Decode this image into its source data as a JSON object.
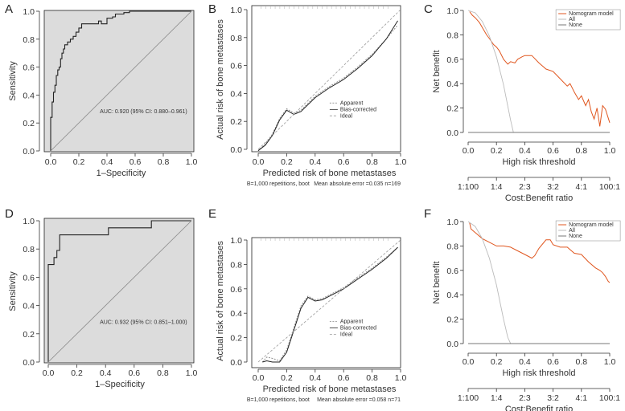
{
  "chart_data": [
    {
      "id": "A",
      "letter": "A",
      "type": "line",
      "kind": "roc",
      "xlabel": "1–Specificity",
      "ylabel": "Sensitivity",
      "xlim": [
        0,
        1
      ],
      "ylim": [
        0,
        1
      ],
      "xticks": [
        "0.0",
        "0.2",
        "0.4",
        "0.6",
        "0.8",
        "1.0"
      ],
      "yticks": [
        "0.0",
        "0.2",
        "0.4",
        "0.6",
        "0.8",
        "1.0"
      ],
      "annotation": "AUC: 0.920 (95% CI: 0.880–0.961)",
      "series": [
        {
          "name": "ROC",
          "x": [
            0,
            0,
            0.01,
            0.01,
            0.02,
            0.02,
            0.03,
            0.03,
            0.04,
            0.04,
            0.05,
            0.05,
            0.06,
            0.06,
            0.07,
            0.07,
            0.08,
            0.08,
            0.09,
            0.09,
            0.1,
            0.1,
            0.12,
            0.12,
            0.14,
            0.14,
            0.16,
            0.16,
            0.18,
            0.18,
            0.2,
            0.2,
            0.22,
            0.22,
            0.34,
            0.34,
            0.36,
            0.36,
            0.4,
            0.4,
            0.44,
            0.44,
            0.46,
            0.46,
            0.52,
            0.52,
            0.56,
            0.56,
            1
          ],
          "y": [
            0,
            0.24,
            0.24,
            0.35,
            0.35,
            0.42,
            0.42,
            0.47,
            0.47,
            0.54,
            0.54,
            0.58,
            0.58,
            0.6,
            0.6,
            0.66,
            0.66,
            0.7,
            0.7,
            0.73,
            0.73,
            0.76,
            0.76,
            0.78,
            0.78,
            0.8,
            0.8,
            0.82,
            0.82,
            0.85,
            0.85,
            0.88,
            0.88,
            0.91,
            0.91,
            0.93,
            0.93,
            0.91,
            0.91,
            0.95,
            0.95,
            0.96,
            0.96,
            0.98,
            0.98,
            0.99,
            0.99,
            1,
            1
          ]
        },
        {
          "name": "Reference",
          "x": [
            0,
            1
          ],
          "y": [
            0,
            1
          ]
        }
      ]
    },
    {
      "id": "B",
      "letter": "B",
      "type": "line",
      "kind": "calibration",
      "xlabel": "Predicted risk of bone metastases",
      "ylabel": "Actual risk of bone metastases",
      "xlim": [
        0,
        1
      ],
      "ylim": [
        0,
        1
      ],
      "xticks": [
        "0.0",
        "0.2",
        "0.4",
        "0.6",
        "0.8",
        "1.0"
      ],
      "yticks": [
        "0.0",
        "0.2",
        "0.4",
        "0.6",
        "0.8",
        "1.0"
      ],
      "footnote_left": "B=1,000 repetitions, boot",
      "footnote_right": "Mean absolute error =0.035 n=169",
      "legend": [
        "Apparent",
        "Bias-corrected",
        "Ideal"
      ],
      "series": [
        {
          "name": "Apparent",
          "x": [
            0,
            0.05,
            0.1,
            0.15,
            0.2,
            0.25,
            0.3,
            0.4,
            0.5,
            0.6,
            0.7,
            0.8,
            0.9,
            0.98
          ],
          "y": [
            -0.01,
            0.04,
            0.11,
            0.22,
            0.29,
            0.26,
            0.28,
            0.38,
            0.45,
            0.51,
            0.59,
            0.68,
            0.79,
            0.89
          ]
        },
        {
          "name": "Bias-corrected",
          "x": [
            0,
            0.05,
            0.1,
            0.15,
            0.2,
            0.25,
            0.3,
            0.4,
            0.5,
            0.6,
            0.7,
            0.8,
            0.9,
            0.98
          ],
          "y": [
            -0.01,
            0.03,
            0.1,
            0.21,
            0.28,
            0.25,
            0.27,
            0.37,
            0.44,
            0.5,
            0.58,
            0.67,
            0.79,
            0.92
          ]
        },
        {
          "name": "Ideal",
          "x": [
            0,
            1
          ],
          "y": [
            0,
            1
          ]
        }
      ]
    },
    {
      "id": "C",
      "letter": "C",
      "type": "line",
      "kind": "dca",
      "xlabel": "High risk threshold",
      "ylabel": "Net benefit",
      "x2label": "Cost:Benefit ratio",
      "xlim": [
        0,
        1
      ],
      "ylim": [
        0,
        1
      ],
      "xticks": [
        "0.0",
        "0.2",
        "0.4",
        "0.6",
        "0.8",
        "1.0"
      ],
      "yticks": [
        "0.0",
        "0.2",
        "0.4",
        "0.6",
        "0.8",
        "1.0"
      ],
      "ratio_ticks": [
        "1:100",
        "1:4",
        "2:3",
        "3:2",
        "4:1",
        "100:1"
      ],
      "legend": [
        "Nomogram model",
        "All",
        "None"
      ],
      "series": [
        {
          "name": "Nomogram model",
          "x": [
            0.01,
            0.03,
            0.05,
            0.08,
            0.1,
            0.13,
            0.15,
            0.18,
            0.2,
            0.22,
            0.25,
            0.28,
            0.3,
            0.33,
            0.35,
            0.38,
            0.4,
            0.45,
            0.5,
            0.55,
            0.6,
            0.65,
            0.7,
            0.72,
            0.75,
            0.78,
            0.8,
            0.83,
            0.85,
            0.87,
            0.89,
            0.91,
            0.93,
            0.95,
            0.97,
            1.0
          ],
          "y": [
            0.99,
            0.96,
            0.94,
            0.9,
            0.86,
            0.8,
            0.77,
            0.72,
            0.7,
            0.67,
            0.6,
            0.56,
            0.58,
            0.57,
            0.6,
            0.62,
            0.63,
            0.63,
            0.57,
            0.52,
            0.5,
            0.44,
            0.38,
            0.4,
            0.33,
            0.27,
            0.3,
            0.22,
            0.27,
            0.17,
            0.11,
            0.2,
            0.05,
            0.22,
            0.19,
            0.08
          ]
        },
        {
          "name": "All",
          "x": [
            0,
            0.05,
            0.1,
            0.15,
            0.2,
            0.25,
            0.3,
            0.32
          ],
          "y": [
            1.0,
            0.98,
            0.91,
            0.79,
            0.62,
            0.39,
            0.1,
            0.0
          ]
        },
        {
          "name": "None",
          "x": [
            0,
            1
          ],
          "y": [
            0,
            0
          ]
        }
      ]
    },
    {
      "id": "D",
      "letter": "D",
      "type": "line",
      "kind": "roc",
      "xlabel": "1–Specificity",
      "ylabel": "Sensitivity",
      "xlim": [
        0,
        1
      ],
      "ylim": [
        0,
        1
      ],
      "xticks": [
        "0.0",
        "0.2",
        "0.4",
        "0.6",
        "0.8",
        "1.0"
      ],
      "yticks": [
        "0.0",
        "0.2",
        "0.4",
        "0.6",
        "0.8",
        "1.0"
      ],
      "annotation": "AUC: 0.932 (95% CI: 0.851–1.000)",
      "series": [
        {
          "name": "ROC",
          "x": [
            0,
            0,
            0.04,
            0.04,
            0.06,
            0.06,
            0.08,
            0.08,
            0.42,
            0.42,
            0.72,
            0.72,
            1
          ],
          "y": [
            0,
            0.69,
            0.69,
            0.74,
            0.74,
            0.79,
            0.79,
            0.9,
            0.9,
            0.95,
            0.95,
            1,
            1
          ]
        },
        {
          "name": "Reference",
          "x": [
            0,
            1
          ],
          "y": [
            0,
            1
          ]
        }
      ]
    },
    {
      "id": "E",
      "letter": "E",
      "type": "line",
      "kind": "calibration",
      "xlabel": "Predicted risk of bone metastases",
      "ylabel": "Actual risk of bone metastases",
      "xlim": [
        0,
        1
      ],
      "ylim": [
        0,
        1
      ],
      "xticks": [
        "0.0",
        "0.2",
        "0.4",
        "0.6",
        "0.8",
        "1.0"
      ],
      "yticks": [
        "0.0",
        "0.2",
        "0.4",
        "0.6",
        "0.8",
        "1.0"
      ],
      "footnote_left": "B=1,000 repetitions, boot",
      "footnote_right": "Mean absolute error =0.058 n=71",
      "legend": [
        "Apparent",
        "Bias-corrected",
        "Ideal"
      ],
      "series": [
        {
          "name": "Apparent",
          "x": [
            0.03,
            0.06,
            0.1,
            0.15,
            0.2,
            0.25,
            0.3,
            0.35,
            0.4,
            0.45,
            0.5,
            0.6,
            0.7,
            0.8,
            0.9,
            0.98
          ],
          "y": [
            0.0,
            0.04,
            0.03,
            0.01,
            0.1,
            0.28,
            0.46,
            0.54,
            0.51,
            0.52,
            0.55,
            0.61,
            0.69,
            0.77,
            0.86,
            0.94
          ]
        },
        {
          "name": "Bias-corrected",
          "x": [
            0.03,
            0.06,
            0.1,
            0.15,
            0.2,
            0.25,
            0.3,
            0.35,
            0.4,
            0.45,
            0.5,
            0.6,
            0.7,
            0.8,
            0.9,
            0.98
          ],
          "y": [
            0.0,
            0.01,
            0.0,
            0.0,
            0.08,
            0.26,
            0.44,
            0.53,
            0.5,
            0.51,
            0.54,
            0.6,
            0.68,
            0.76,
            0.85,
            0.94
          ]
        },
        {
          "name": "Ideal",
          "x": [
            0,
            1
          ],
          "y": [
            0,
            1
          ]
        }
      ]
    },
    {
      "id": "F",
      "letter": "F",
      "type": "line",
      "kind": "dca",
      "xlabel": "High risk threshold",
      "ylabel": "Net benefit",
      "x2label": "Cost:Benefit ratio",
      "xlim": [
        0,
        1
      ],
      "ylim": [
        0,
        1
      ],
      "xticks": [
        "0.0",
        "0.2",
        "0.4",
        "0.6",
        "0.8",
        "1.0"
      ],
      "yticks": [
        "0.0",
        "0.2",
        "0.4",
        "0.6",
        "0.8",
        "1.0"
      ],
      "ratio_ticks": [
        "1:100",
        "1:4",
        "2:3",
        "3:2",
        "4:1",
        "100:1"
      ],
      "legend": [
        "Nomogram model",
        "All",
        "None"
      ],
      "series": [
        {
          "name": "Nomogram model",
          "x": [
            0.01,
            0.02,
            0.04,
            0.06,
            0.1,
            0.15,
            0.2,
            0.25,
            0.3,
            0.35,
            0.4,
            0.45,
            0.47,
            0.5,
            0.55,
            0.58,
            0.6,
            0.65,
            0.7,
            0.75,
            0.8,
            0.85,
            0.9,
            0.93,
            0.95,
            0.97,
            0.99,
            1.0
          ],
          "y": [
            0.99,
            0.94,
            0.92,
            0.9,
            0.86,
            0.83,
            0.8,
            0.8,
            0.79,
            0.76,
            0.73,
            0.7,
            0.72,
            0.78,
            0.85,
            0.85,
            0.81,
            0.79,
            0.79,
            0.74,
            0.73,
            0.67,
            0.62,
            0.6,
            0.58,
            0.55,
            0.51,
            0.5
          ]
        },
        {
          "name": "All",
          "x": [
            0,
            0.05,
            0.1,
            0.15,
            0.2,
            0.25,
            0.28,
            0.3
          ],
          "y": [
            1.0,
            0.96,
            0.86,
            0.7,
            0.48,
            0.2,
            0.05,
            0.0
          ]
        },
        {
          "name": "None",
          "x": [
            0,
            1
          ],
          "y": [
            0,
            0
          ]
        }
      ]
    }
  ]
}
